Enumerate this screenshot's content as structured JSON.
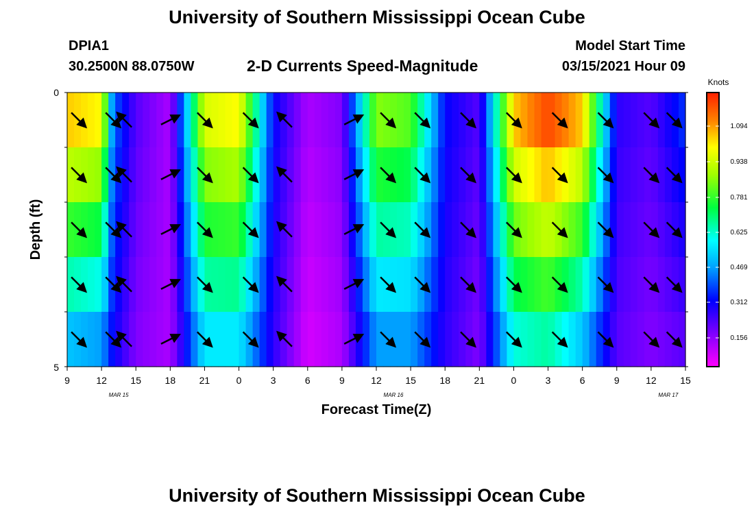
{
  "header": {
    "title": "University of Southern Mississippi Ocean Cube",
    "station": "DPIA1",
    "coordinates": "30.2500N 88.0750W",
    "plot_title": "2-D Currents Speed-Magnitude",
    "model_start_label": "Model Start Time",
    "model_start_value": "03/15/2021 Hour 09"
  },
  "footer": {
    "title": "University of Southern Mississippi Ocean Cube"
  },
  "chart_data": {
    "type": "heatmap",
    "title": "2-D Currents Speed-Magnitude",
    "xlabel": "Forecast Time(Z)",
    "ylabel": "Depth (ft)",
    "ylim": [
      0,
      5
    ],
    "y_ticks": [
      "0",
      "5"
    ],
    "x_tick_labels": [
      "9",
      "12",
      "15",
      "18",
      "21",
      "0",
      "3",
      "6",
      "9",
      "12",
      "15",
      "18",
      "21",
      "0",
      "3",
      "6",
      "9",
      "12",
      "15"
    ],
    "date_labels": [
      "MAR 15",
      "MAR 16",
      "MAR 17"
    ],
    "colorbar": {
      "label": "Knots",
      "ticks": [
        "1.094",
        "0.938",
        "0.781",
        "0.625",
        "0.469",
        "0.312",
        "0.156"
      ]
    },
    "speed_timeseries_knots": {
      "hours_from_start": [
        0,
        3,
        4,
        6,
        9,
        12,
        15,
        18,
        21,
        24,
        27,
        30,
        33,
        36,
        39,
        42,
        45,
        48,
        51,
        54
      ],
      "surface": [
        1.05,
        1.0,
        0.4,
        0.2,
        0.1,
        0.95,
        1.0,
        0.3,
        0.1,
        0.15,
        0.85,
        0.8,
        0.3,
        0.2,
        1.05,
        1.2,
        1.05,
        0.25,
        0.2,
        0.35
      ],
      "bottom": [
        0.5,
        0.45,
        0.3,
        0.15,
        0.1,
        0.55,
        0.55,
        0.25,
        0.05,
        0.1,
        0.45,
        0.45,
        0.25,
        0.15,
        0.6,
        0.65,
        0.5,
        0.2,
        0.15,
        0.2
      ]
    },
    "arrows": {
      "hours_from_start": [
        1,
        4,
        5,
        9,
        12,
        16,
        19,
        25,
        28,
        31,
        35,
        39,
        43,
        47,
        51,
        53
      ],
      "direction": [
        "SE",
        "SE",
        "NW",
        "NE",
        "SE",
        "SE",
        "NW",
        "NE",
        "SE",
        "SE",
        "SE",
        "SE",
        "SE",
        "SE",
        "SE",
        "SE"
      ]
    },
    "colors": {
      "scale": [
        "#ff00ff",
        "#8000ff",
        "#0000ff",
        "#00a0ff",
        "#00ffff",
        "#00ff40",
        "#a0ff00",
        "#ffff00",
        "#ff8000",
        "#ff2000"
      ],
      "frame": "#000000"
    }
  }
}
